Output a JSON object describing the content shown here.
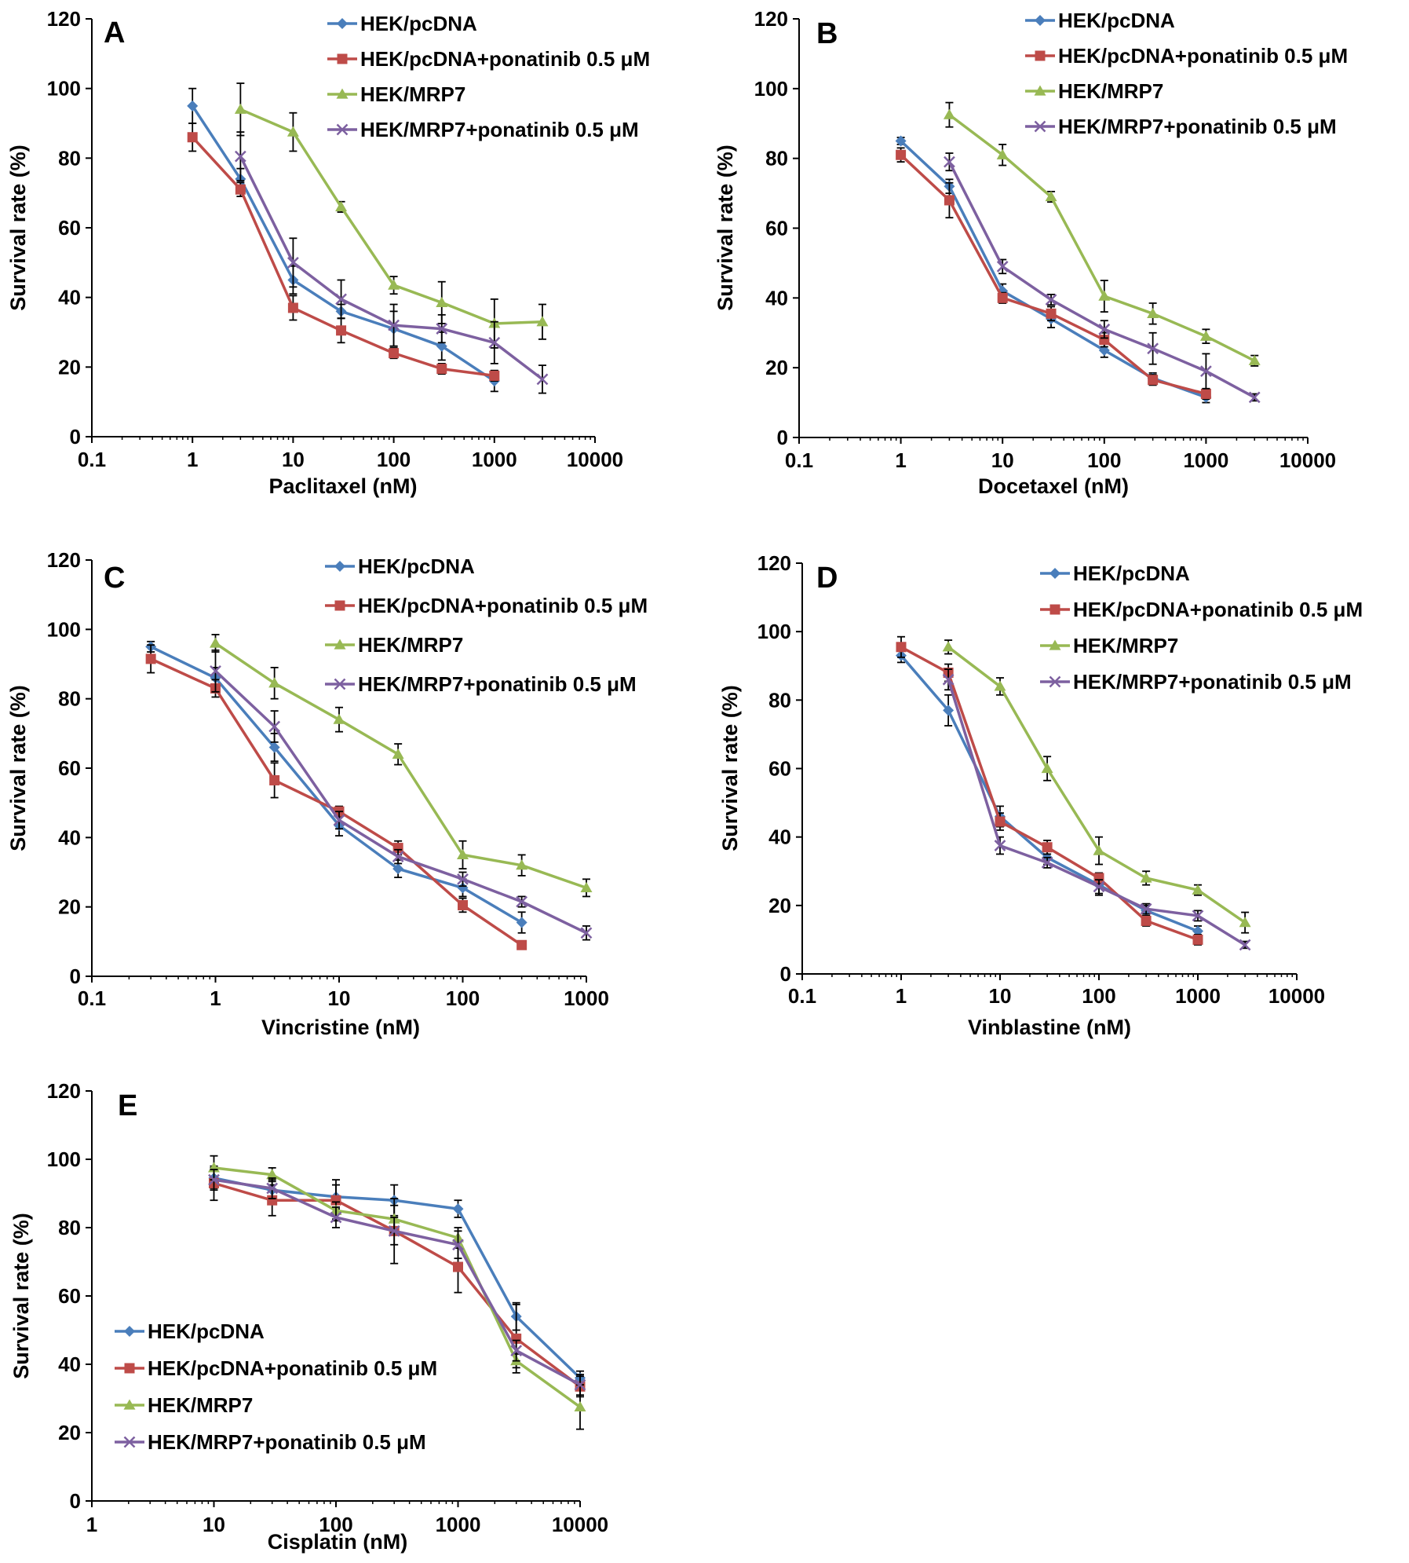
{
  "colors": {
    "HEK/pcDNA": "#4a7ebb",
    "HEK/pcDNA+ponatinib 0.5 μM": "#be4b48",
    "HEK/MRP7": "#98b954",
    "HEK/MRP7+ponatinib 0.5 μM": "#7d60a0",
    "axis": "#000000"
  },
  "chart_data": [
    {
      "panel": "A",
      "type": "line",
      "xscale": "log",
      "xlabel": "Paclitaxel (nM)",
      "ylabel": "Survival rate (%)",
      "xticks": [
        "0.1",
        "1",
        "10",
        "100",
        "1000",
        "10000"
      ],
      "yticks": [
        "0",
        "20",
        "40",
        "60",
        "80",
        "100",
        "120"
      ],
      "xlim": [
        0.1,
        10000
      ],
      "ylim": [
        0,
        120
      ],
      "legend_position": "top-right",
      "series": [
        {
          "name": "HEK/pcDNA",
          "marker": "diamond",
          "x": [
            1,
            3,
            10,
            30,
            100,
            300,
            1000
          ],
          "values": [
            95,
            74,
            45,
            36,
            31,
            26,
            16
          ],
          "err": [
            5,
            3,
            4,
            2,
            5,
            4,
            3
          ]
        },
        {
          "name": "HEK/pcDNA+ponatinib 0.5 μM",
          "marker": "square",
          "x": [
            1,
            3,
            10,
            30,
            100,
            300,
            1000
          ],
          "values": [
            86,
            71,
            37,
            30.5,
            24,
            19.5,
            17.5
          ],
          "err": [
            4,
            2,
            3.5,
            3.5,
            1.5,
            1.5,
            1.5
          ]
        },
        {
          "name": "HEK/MRP7",
          "marker": "triangle",
          "x": [
            3,
            10,
            30,
            100,
            300,
            1000,
            3000
          ],
          "values": [
            94,
            87.5,
            66,
            43.5,
            38.5,
            32.5,
            33
          ],
          "err": [
            7.5,
            5.5,
            1.5,
            2.5,
            6,
            7,
            5
          ]
        },
        {
          "name": "HEK/MRP7+ponatinib 0.5 μM",
          "marker": "x",
          "x": [
            3,
            10,
            30,
            100,
            300,
            1000,
            3000
          ],
          "values": [
            80.5,
            50,
            39.5,
            32,
            31,
            27,
            16.5
          ],
          "err": [
            7,
            7,
            5.5,
            6,
            4,
            6,
            4
          ]
        }
      ]
    },
    {
      "panel": "B",
      "type": "line",
      "xscale": "log",
      "xlabel": "Docetaxel (nM)",
      "ylabel": "Survival rate (%)",
      "xticks": [
        "0.1",
        "1",
        "10",
        "100",
        "1000",
        "10000"
      ],
      "yticks": [
        "0",
        "20",
        "40",
        "60",
        "80",
        "100",
        "120"
      ],
      "xlim": [
        0.1,
        10000
      ],
      "ylim": [
        0,
        120
      ],
      "legend_position": "top-right",
      "series": [
        {
          "name": "HEK/pcDNA",
          "marker": "diamond",
          "x": [
            1,
            3,
            10,
            30,
            100,
            300,
            1000
          ],
          "values": [
            85,
            72,
            42,
            34,
            25,
            17,
            11.5
          ],
          "err": [
            1,
            2,
            2,
            2.5,
            2,
            1.5,
            1.5
          ]
        },
        {
          "name": "HEK/pcDNA+ponatinib 0.5 μM",
          "marker": "square",
          "x": [
            1,
            3,
            10,
            30,
            100,
            300,
            1000
          ],
          "values": [
            81,
            68,
            40,
            35.5,
            28,
            16.5,
            12.5
          ],
          "err": [
            2,
            5,
            1.5,
            2,
            2,
            1.5,
            1.5
          ]
        },
        {
          "name": "HEK/MRP7",
          "marker": "triangle",
          "x": [
            3,
            10,
            30,
            100,
            300,
            1000,
            3000
          ],
          "values": [
            92.5,
            81,
            69,
            40.5,
            35.5,
            29,
            22
          ],
          "err": [
            3.5,
            3,
            1.5,
            4.5,
            3,
            2,
            1.5
          ]
        },
        {
          "name": "HEK/MRP7+ponatinib 0.5 μM",
          "marker": "x",
          "x": [
            3,
            10,
            30,
            100,
            300,
            1000,
            3000
          ],
          "values": [
            79,
            49,
            39.5,
            31,
            25.5,
            19,
            11.5
          ],
          "err": [
            2.5,
            2,
            1.5,
            2.5,
            4.5,
            5,
            1
          ]
        }
      ]
    },
    {
      "panel": "C",
      "type": "line",
      "xscale": "log",
      "xlabel": "Vincristine (nM)",
      "ylabel": "Survival rate (%)",
      "xticks": [
        "0.1",
        "1",
        "10",
        "100",
        "1000"
      ],
      "yticks": [
        "0",
        "20",
        "40",
        "60",
        "80",
        "100",
        "120"
      ],
      "xlim": [
        0.1,
        1000
      ],
      "ylim": [
        0,
        120
      ],
      "legend_position": "top-right",
      "series": [
        {
          "name": "HEK/pcDNA",
          "marker": "diamond",
          "x": [
            0.3,
            1,
            3,
            10,
            30,
            100,
            300
          ],
          "values": [
            95,
            86,
            66,
            43.5,
            31,
            25.5,
            15.5
          ],
          "err": [
            1.5,
            3,
            4,
            3,
            2.5,
            2.5,
            3
          ]
        },
        {
          "name": "HEK/pcDNA+ponatinib 0.5 μM",
          "marker": "square",
          "x": [
            0.3,
            1,
            3,
            10,
            30,
            100,
            300
          ],
          "values": [
            91.5,
            83,
            56.5,
            47.5,
            37,
            20.5,
            9
          ],
          "err": [
            4,
            2.5,
            5,
            1.5,
            2,
            2,
            1
          ]
        },
        {
          "name": "HEK/MRP7",
          "marker": "triangle",
          "x": [
            1,
            3,
            10,
            30,
            100,
            300,
            1000
          ],
          "values": [
            96,
            84.5,
            74,
            64,
            35,
            32,
            25.5
          ],
          "err": [
            2.5,
            4.5,
            3.5,
            3,
            4,
            3,
            2.5
          ]
        },
        {
          "name": "HEK/MRP7+ponatinib 0.5 μM",
          "marker": "x",
          "x": [
            1,
            3,
            10,
            30,
            100,
            300,
            1000
          ],
          "values": [
            88,
            72,
            45,
            34.5,
            28,
            21.5,
            12.5
          ],
          "err": [
            6,
            4.5,
            2.5,
            2,
            2,
            1.5,
            2
          ]
        }
      ]
    },
    {
      "panel": "D",
      "type": "line",
      "xscale": "log",
      "xlabel": "Vinblastine (nM)",
      "ylabel": "Survival rate (%)",
      "xticks": [
        "0.1",
        "1",
        "10",
        "100",
        "1000",
        "10000"
      ],
      "yticks": [
        "0",
        "20",
        "40",
        "60",
        "80",
        "100",
        "120"
      ],
      "xlim": [
        0.1,
        10000
      ],
      "ylim": [
        0,
        120
      ],
      "legend_position": "top-right",
      "series": [
        {
          "name": "HEK/pcDNA",
          "marker": "diamond",
          "x": [
            1,
            3,
            10,
            30,
            100,
            300,
            1000
          ],
          "values": [
            93,
            77,
            46,
            34,
            26,
            18.5,
            12.5
          ],
          "err": [
            2,
            4.5,
            3,
            2,
            3,
            1.5,
            1.5
          ]
        },
        {
          "name": "HEK/pcDNA+ponatinib 0.5 μM",
          "marker": "square",
          "x": [
            1,
            3,
            10,
            30,
            100,
            300,
            1000
          ],
          "values": [
            95.5,
            88,
            44.5,
            37,
            28,
            15.5,
            10
          ],
          "err": [
            3,
            2.5,
            2.5,
            2,
            1.5,
            1.5,
            1.5
          ]
        },
        {
          "name": "HEK/MRP7",
          "marker": "triangle",
          "x": [
            3,
            10,
            30,
            100,
            300,
            1000,
            3000
          ],
          "values": [
            95.5,
            84,
            60,
            36,
            28,
            24.5,
            15
          ],
          "err": [
            2,
            2.5,
            3.5,
            4,
            2,
            1.5,
            3
          ]
        },
        {
          "name": "HEK/MRP7+ponatinib 0.5 μM",
          "marker": "x",
          "x": [
            3,
            10,
            30,
            100,
            300,
            1000,
            3000
          ],
          "values": [
            86,
            37.5,
            32.5,
            25.5,
            19,
            17,
            8.5
          ],
          "err": [
            3,
            2.5,
            1.5,
            2,
            1.5,
            1.5,
            1
          ]
        }
      ]
    },
    {
      "panel": "E",
      "type": "line",
      "xscale": "log",
      "xlabel": "Cisplatin (nM)",
      "ylabel": "Survival rate (%)",
      "xticks": [
        "1",
        "10",
        "100",
        "1000",
        "10000"
      ],
      "yticks": [
        "0",
        "20",
        "40",
        "60",
        "80",
        "100",
        "120"
      ],
      "xlim": [
        1,
        10000
      ],
      "ylim": [
        0,
        120
      ],
      "legend_position": "bottom-left",
      "series": [
        {
          "name": "HEK/pcDNA",
          "marker": "diamond",
          "x": [
            10,
            30,
            100,
            300,
            1000,
            3000,
            10000
          ],
          "values": [
            94.5,
            91,
            89,
            88,
            85.5,
            54,
            36
          ],
          "err": [
            3,
            3,
            3.5,
            4.5,
            2.5,
            4,
            2
          ]
        },
        {
          "name": "HEK/pcDNA+ponatinib 0.5 μM",
          "marker": "square",
          "x": [
            10,
            30,
            100,
            300,
            1000,
            3000,
            10000
          ],
          "values": [
            93,
            88,
            88,
            79,
            68.5,
            47.5,
            33.5
          ],
          "err": [
            5,
            4.5,
            6,
            9.5,
            7.5,
            10,
            3
          ]
        },
        {
          "name": "HEK/MRP7",
          "marker": "triangle",
          "x": [
            10,
            30,
            100,
            300,
            1000,
            3000,
            10000
          ],
          "values": [
            97.5,
            95.5,
            85,
            82.5,
            77,
            41,
            27.5
          ],
          "err": [
            3.5,
            2,
            2.5,
            4,
            3,
            2,
            6.5
          ]
        },
        {
          "name": "HEK/MRP7+ponatinib 0.5 μM",
          "marker": "x",
          "x": [
            10,
            30,
            100,
            300,
            1000,
            3000,
            10000
          ],
          "values": [
            94,
            91.5,
            83,
            79,
            75,
            44,
            34
          ],
          "err": [
            3,
            3,
            3,
            4,
            4,
            3,
            3
          ]
        }
      ]
    }
  ]
}
